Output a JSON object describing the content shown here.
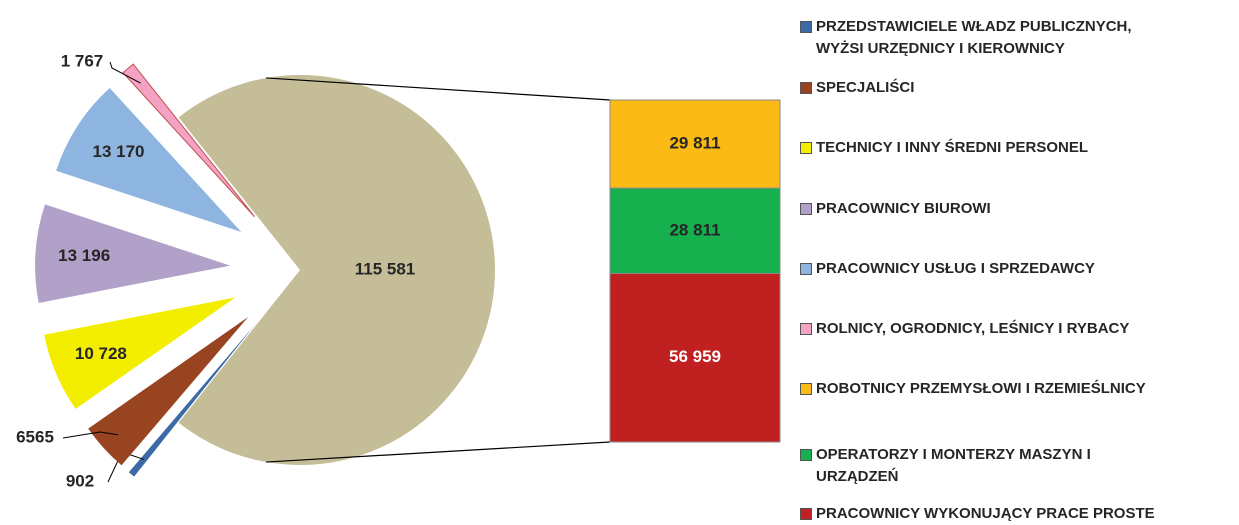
{
  "chart_data": {
    "type": "bar-of-pie",
    "pie": {
      "categories": [
        "PRZEDSTAWICIELE WŁADZ PUBLICZNYCH,\nWYŻSI URZĘDNICY I KIEROWNICY",
        "SPECJALIŚCI",
        "TECHNICY I INNY ŚREDNI PERSONEL",
        "PRACOWNICY BIUROWI",
        "PRACOWNICY USŁUG I SPRZEDAWCY",
        "ROLNICY, OGRODNICY, LEŚNICY I RYBACY"
      ],
      "values": [
        902,
        6565,
        10728,
        13196,
        13170,
        1767
      ],
      "value_labels": [
        "902",
        "6565",
        "10 728",
        "13 196",
        "13 170",
        "1 767"
      ],
      "colors": [
        "#3b6aa6",
        "#994420",
        "#f3ee00",
        "#b1a0c8",
        "#8eb4e0",
        "#f5a3c4"
      ]
    },
    "other": {
      "value": 115581,
      "value_label": "115 581",
      "color": "#c4bd97"
    },
    "bar": {
      "categories": [
        "ROBOTNICY PRZEMYSŁOWI I RZEMIEŚLNICY",
        "OPERATORZY I MONTERZY MASZYN I\nURZĄDZEŃ",
        "PRACOWNICY WYKONUJĄCY PRACE PROSTE"
      ],
      "values": [
        29811,
        28811,
        56959
      ],
      "value_labels": [
        "29 811",
        "28 811",
        "56 959"
      ],
      "colors": [
        "#fbbb14",
        "#17b04e",
        "#c0201f"
      ]
    }
  }
}
